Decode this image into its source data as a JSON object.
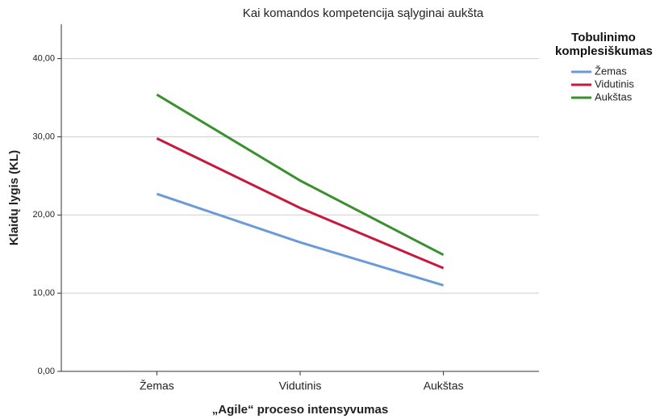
{
  "chart_data": {
    "type": "line",
    "title": "Kai komandos kompetencija sąlyginai aukšta",
    "x_label": "„Agile“ proceso intensyvumas",
    "y_label": "Klaidų lygis (KL)",
    "legend_title": "Tobulinimo komplesiškumas",
    "legend": "right",
    "grid": true,
    "categories": [
      "Žemas",
      "Vidutinis",
      "Aukštas"
    ],
    "series": [
      {
        "name": "Žemas",
        "color": "#6a9bd8",
        "values": [
          22.7,
          16.5,
          11.0
        ]
      },
      {
        "name": "Vidutinis",
        "color": "#c8193c",
        "values": [
          29.8,
          20.9,
          13.2
        ]
      },
      {
        "name": "Aukštas",
        "color": "#3a8f2e",
        "values": [
          35.4,
          24.4,
          14.9
        ]
      }
    ],
    "ylim": [
      0,
      44.4
    ],
    "yticks": [
      {
        "value": 0,
        "label": "0,00"
      },
      {
        "value": 10,
        "label": "10,00"
      },
      {
        "value": 20,
        "label": "20,00"
      },
      {
        "value": 30,
        "label": "30,00"
      },
      {
        "value": 40,
        "label": "40,00"
      }
    ]
  }
}
